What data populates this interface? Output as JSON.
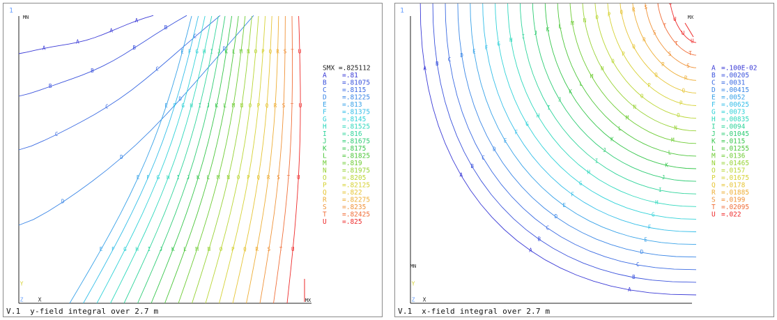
{
  "chart_data": [
    {
      "type": "contour",
      "window_number": "1",
      "caption_prefix": "V.1",
      "caption": "y-field integral over 2.7 m",
      "min_marker": "MN",
      "max_marker": "MX",
      "smx_label": "SMX =",
      "smx_value": ".825112",
      "axis_labels": {
        "y": "Y",
        "z": "Z",
        "x": "X"
      },
      "levels": [
        {
          "key": "A",
          "value": ".81",
          "color": "#3a3ad6"
        },
        {
          "key": "B",
          "value": ".81075",
          "color": "#3a52dc"
        },
        {
          "key": "C",
          "value": ".8115",
          "color": "#3a6ae2"
        },
        {
          "key": "D",
          "value": ".81225",
          "color": "#3a86e6"
        },
        {
          "key": "E",
          "value": ".813",
          "color": "#38a2e8"
        },
        {
          "key": "F",
          "value": ".81375",
          "color": "#34bee8"
        },
        {
          "key": "G",
          "value": ".8145",
          "color": "#30d2d8"
        },
        {
          "key": "H",
          "value": ".81525",
          "color": "#2ed8bc"
        },
        {
          "key": "I",
          "value": ".816",
          "color": "#2ed49a"
        },
        {
          "key": "J",
          "value": ".81675",
          "color": "#2ecc74"
        },
        {
          "key": "K",
          "value": ".8175",
          "color": "#36c64c"
        },
        {
          "key": "L",
          "value": ".81825",
          "color": "#4cc63a"
        },
        {
          "key": "M",
          "value": ".819",
          "color": "#6ecc34"
        },
        {
          "key": "N",
          "value": ".81975",
          "color": "#96d234"
        },
        {
          "key": "O",
          "value": ".8205",
          "color": "#bad634"
        },
        {
          "key": "P",
          "value": ".82125",
          "color": "#d6d234"
        },
        {
          "key": "Q",
          "value": ".822",
          "color": "#e6c434"
        },
        {
          "key": "R",
          "value": ".82275",
          "color": "#eeae36"
        },
        {
          "key": "S",
          "value": ".8235",
          "color": "#f09238"
        },
        {
          "key": "T",
          "value": ".82425",
          "color": "#f06e38"
        },
        {
          "key": "U",
          "value": ".825",
          "color": "#ee2a2a"
        }
      ]
    },
    {
      "type": "contour",
      "window_number": "1",
      "caption_prefix": "V.1",
      "caption": "x-field integral over 2.7 m",
      "min_marker": "MN",
      "max_marker": "MX",
      "axis_labels": {
        "y": "Y",
        "z": "Z",
        "x": "X"
      },
      "levels": [
        {
          "key": "A",
          "value": ".100E-02",
          "color": "#3a3ad6"
        },
        {
          "key": "B",
          "value": ".00205",
          "color": "#3a52dc"
        },
        {
          "key": "C",
          "value": ".0031",
          "color": "#3a6ae2"
        },
        {
          "key": "D",
          "value": ".00415",
          "color": "#3a86e6"
        },
        {
          "key": "E",
          "value": ".0052",
          "color": "#38a2e8"
        },
        {
          "key": "F",
          "value": ".00625",
          "color": "#34bee8"
        },
        {
          "key": "G",
          "value": ".0073",
          "color": "#30d2d8"
        },
        {
          "key": "H",
          "value": ".00835",
          "color": "#2ed8bc"
        },
        {
          "key": "I",
          "value": ".0094",
          "color": "#2ed49a"
        },
        {
          "key": "J",
          "value": ".01045",
          "color": "#2ecc74"
        },
        {
          "key": "K",
          "value": ".0115",
          "color": "#36c64c"
        },
        {
          "key": "L",
          "value": ".01255",
          "color": "#4cc63a"
        },
        {
          "key": "M",
          "value": ".0136",
          "color": "#6ecc34"
        },
        {
          "key": "N",
          "value": ".01465",
          "color": "#96d234"
        },
        {
          "key": "O",
          "value": ".0157",
          "color": "#bad634"
        },
        {
          "key": "P",
          "value": ".01675",
          "color": "#d6d234"
        },
        {
          "key": "Q",
          "value": ".0178",
          "color": "#e6c434"
        },
        {
          "key": "R",
          "value": ".01885",
          "color": "#eeae36"
        },
        {
          "key": "S",
          "value": ".0199",
          "color": "#f09238"
        },
        {
          "key": "T",
          "value": ".02095",
          "color": "#f06e38"
        },
        {
          "key": "U",
          "value": ".022",
          "color": "#ee2a2a"
        }
      ]
    }
  ]
}
